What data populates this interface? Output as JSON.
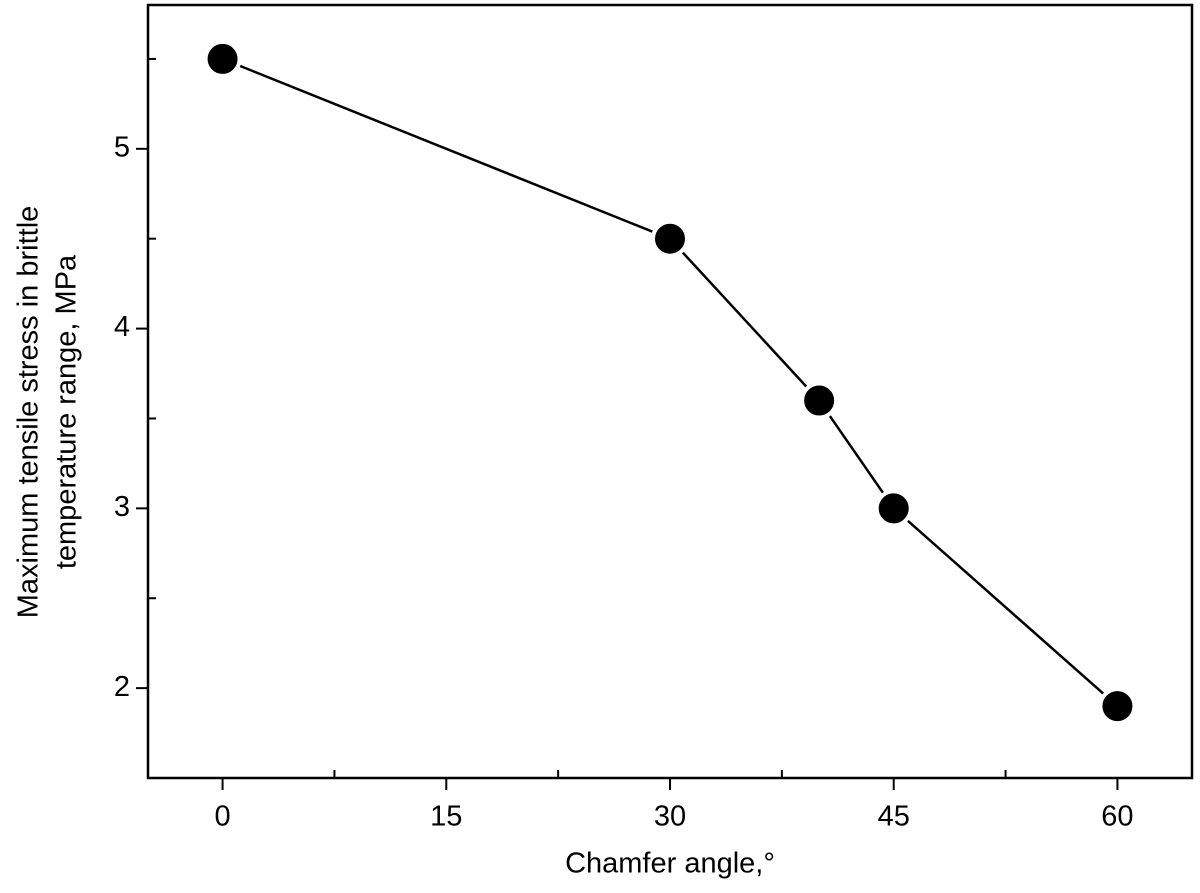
{
  "chart_data": {
    "type": "line",
    "xlabel": "Chamfer angle,°",
    "ylabel": [
      "Maximum tensile stress in brittle",
      "temperature range, MPa"
    ],
    "x": [
      0,
      30,
      40,
      45,
      60
    ],
    "series": [
      {
        "color": "#000000",
        "values": [
          5.5,
          4.5,
          3.6,
          3.0,
          1.9
        ]
      }
    ],
    "xlim": [
      -5,
      65
    ],
    "xticks": [
      0,
      15,
      30,
      45,
      60
    ],
    "xminorticks": [
      7.5,
      22.5,
      37.5,
      52.5
    ],
    "ylim": [
      1.5,
      5.8
    ],
    "yticks": [
      2,
      3,
      4,
      5
    ],
    "yminorticks": [
      2.5,
      3.5,
      4.5,
      5.5
    ],
    "grid": false
  }
}
